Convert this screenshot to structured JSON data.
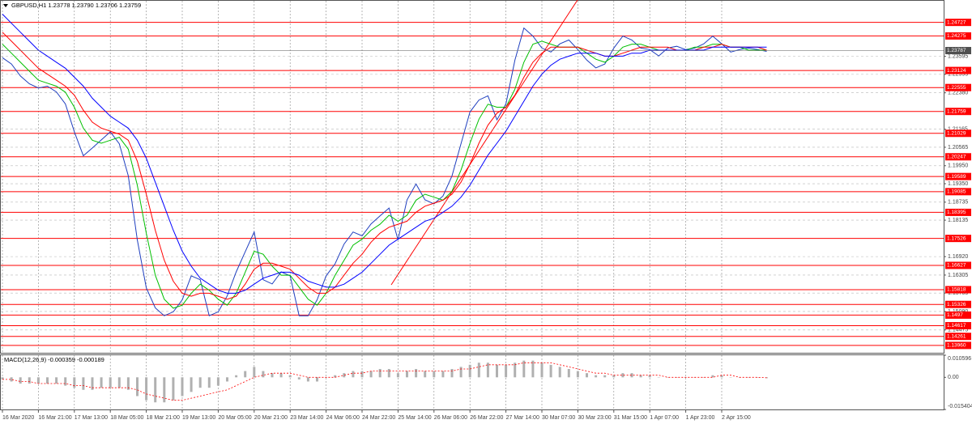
{
  "chart_data": [
    {
      "type": "line",
      "title": "GBPUSD,H1  1.23778 1.23790 1.23706 1.23759",
      "categories": [
        "16 Mar 2020",
        null,
        null,
        null,
        "16 Mar 21:00",
        null,
        null,
        null,
        "17 Mar 13:00",
        null,
        null,
        null,
        "18 Mar 05:00",
        null,
        null,
        null,
        "18 Mar 21:00",
        null,
        null,
        null,
        "19 Mar 13:00",
        null,
        null,
        null,
        "20 Mar 05:00",
        null,
        null,
        null,
        "20 Mar 21:00",
        null,
        null,
        null,
        "23 Mar 14:00",
        null,
        null,
        null,
        "24 Mar 06:00",
        null,
        null,
        null,
        "24 Mar 22:00",
        null,
        null,
        null,
        "25 Mar 14:00",
        null,
        null,
        null,
        "26 Mar 06:00",
        null,
        null,
        null,
        "26 Mar 22:00",
        null,
        null,
        null,
        "27 Mar 14:00",
        null,
        null,
        null,
        "30 Mar 07:00",
        null,
        null,
        null,
        "30 Mar 23:00",
        null,
        null,
        null,
        "31 Mar 15:00",
        null,
        null,
        null,
        "1 Apr 07:00",
        null,
        null,
        null,
        "1 Apr 23:00",
        null,
        null,
        null,
        "2 Apr 15:00",
        null,
        null,
        null,
        null,
        null
      ],
      "series": [
        {
          "color": "#1f3fbf",
          "width": 1,
          "values": [
            1.2355,
            1.2334,
            1.2294,
            1.2268,
            1.2254,
            1.226,
            1.2241,
            1.2201,
            1.2108,
            1.2028,
            1.2054,
            1.2081,
            1.2108,
            1.2068,
            1.1961,
            1.1748,
            1.1588,
            1.1521,
            1.1495,
            1.1508,
            1.1548,
            1.1628,
            1.1615,
            1.1495,
            1.1508,
            1.1561,
            1.1641,
            1.1708,
            1.1774,
            1.1615,
            1.1601,
            1.1641,
            1.1628,
            1.1495,
            1.1495,
            1.1548,
            1.1628,
            1.1668,
            1.1734,
            1.1774,
            1.1761,
            1.1801,
            1.1828,
            1.1854,
            1.1748,
            1.1881,
            1.1934,
            1.1881,
            1.1868,
            1.1894,
            1.1961,
            1.2068,
            1.2174,
            1.2214,
            1.2228,
            1.2148,
            1.2201,
            1.2347,
            1.2454,
            1.2427,
            1.2387,
            1.2374,
            1.2401,
            1.2414,
            1.2382,
            1.2347,
            1.2321,
            1.2334,
            1.2387,
            1.2427,
            1.2414,
            1.2387,
            1.2382,
            1.2361,
            1.2387,
            1.2393,
            1.2382,
            1.2387,
            1.2401,
            1.2427,
            1.2401,
            1.2374,
            1.2382,
            1.2387,
            1.2382,
            1.2376
          ]
        },
        {
          "color": "#00c000",
          "width": 1,
          "values": [
            1.24,
            1.237,
            1.234,
            1.231,
            1.228,
            1.227,
            1.226,
            1.224,
            1.219,
            1.212,
            1.208,
            1.207,
            1.208,
            1.209,
            1.205,
            1.193,
            1.177,
            1.163,
            1.155,
            1.152,
            1.153,
            1.157,
            1.16,
            1.158,
            1.155,
            1.153,
            1.157,
            1.164,
            1.171,
            1.17,
            1.166,
            1.163,
            1.163,
            1.159,
            1.155,
            1.153,
            1.157,
            1.163,
            1.168,
            1.173,
            1.175,
            1.178,
            1.18,
            1.183,
            1.181,
            1.183,
            1.188,
            1.19,
            1.189,
            1.188,
            1.191,
            1.198,
            1.207,
            1.215,
            1.22,
            1.219,
            1.219,
            1.225,
            1.234,
            1.24,
            1.241,
            1.24,
            1.239,
            1.239,
            1.239,
            1.237,
            1.235,
            1.234,
            1.236,
            1.239,
            1.24,
            1.24,
            1.239,
            1.238,
            1.238,
            1.238,
            1.238,
            1.239,
            1.239,
            1.24,
            1.24,
            1.239,
            1.239,
            1.238,
            1.238,
            1.238
          ]
        },
        {
          "color": "#ff0000",
          "width": 1,
          "values": [
            1.244,
            1.241,
            1.238,
            1.235,
            1.232,
            1.23,
            1.228,
            1.226,
            1.223,
            1.218,
            1.214,
            1.212,
            1.211,
            1.21,
            1.208,
            1.201,
            1.19,
            1.178,
            1.168,
            1.161,
            1.157,
            1.156,
            1.157,
            1.157,
            1.156,
            1.155,
            1.156,
            1.16,
            1.165,
            1.167,
            1.167,
            1.166,
            1.165,
            1.162,
            1.159,
            1.157,
            1.157,
            1.159,
            1.163,
            1.167,
            1.17,
            1.174,
            1.177,
            1.179,
            1.18,
            1.181,
            1.184,
            1.186,
            1.187,
            1.188,
            1.19,
            1.194,
            1.2,
            1.207,
            1.213,
            1.217,
            1.219,
            1.223,
            1.229,
            1.234,
            1.237,
            1.239,
            1.239,
            1.239,
            1.239,
            1.238,
            1.237,
            1.236,
            1.236,
            1.237,
            1.238,
            1.239,
            1.239,
            1.239,
            1.239,
            1.238,
            1.238,
            1.238,
            1.239,
            1.239,
            1.24,
            1.239,
            1.239,
            1.239,
            1.239,
            1.238
          ]
        },
        {
          "color": "#0000ff",
          "width": 1,
          "values": [
            1.25,
            1.247,
            1.244,
            1.241,
            1.238,
            1.236,
            1.234,
            1.232,
            1.229,
            1.226,
            1.222,
            1.219,
            1.216,
            1.214,
            1.212,
            1.208,
            1.202,
            1.194,
            1.186,
            1.178,
            1.171,
            1.166,
            1.162,
            1.16,
            1.158,
            1.157,
            1.157,
            1.158,
            1.16,
            1.162,
            1.163,
            1.164,
            1.164,
            1.163,
            1.161,
            1.16,
            1.159,
            1.159,
            1.16,
            1.162,
            1.164,
            1.167,
            1.17,
            1.173,
            1.175,
            1.177,
            1.179,
            1.181,
            1.182,
            1.184,
            1.186,
            1.189,
            1.193,
            1.198,
            1.203,
            1.207,
            1.211,
            1.216,
            1.221,
            1.226,
            1.23,
            1.233,
            1.235,
            1.236,
            1.237,
            1.237,
            1.237,
            1.236,
            1.236,
            1.236,
            1.237,
            1.237,
            1.238,
            1.238,
            1.238,
            1.238,
            1.238,
            1.238,
            1.238,
            1.239,
            1.239,
            1.239,
            1.239,
            1.239,
            1.239,
            1.239
          ]
        }
      ],
      "ylim": [
        1.13687,
        1.25473
      ],
      "yticks": [
        {
          "value": 1.23595,
          "label": "1.23595"
        },
        {
          "value": 1.22995,
          "label": "1.22995"
        },
        {
          "value": 1.2238,
          "label": "1.22380"
        },
        {
          "value": 1.21165,
          "label": "1.21165"
        },
        {
          "value": 1.20565,
          "label": "1.20565"
        },
        {
          "value": 1.1995,
          "label": "1.19950"
        },
        {
          "value": 1.1935,
          "label": "1.19350"
        },
        {
          "value": 1.18735,
          "label": "1.18735"
        },
        {
          "value": 1.18135,
          "label": "1.18135"
        },
        {
          "value": 1.1692,
          "label": "1.16920"
        },
        {
          "value": 1.16305,
          "label": "1.16305"
        },
        {
          "value": 1.15705,
          "label": "1.15705"
        },
        {
          "value": 1.1509,
          "label": "1.15090"
        },
        {
          "value": 1.14475,
          "label": "1.14475"
        }
      ],
      "levels": [
        1.24727,
        1.24275,
        1.23124,
        1.22555,
        1.21759,
        1.21029,
        1.20247,
        1.19589,
        1.19085,
        1.18395,
        1.17526,
        1.16627,
        1.15818,
        1.15326,
        1.1497,
        1.14617,
        1.14261,
        {
          "value": 1.1396,
          "label": "1.13960"
        }
      ],
      "levels_color": "#ff0000",
      "current_price": 1.23787,
      "grid": true
    },
    {
      "type": "macd",
      "title": "MACD(12,26,9) -0.000359 -0.000189",
      "histogram": {
        "color": "#b0b0b0",
        "values": [
          -0.001,
          -0.002,
          -0.003,
          -0.003,
          -0.003,
          -0.003,
          -0.003,
          -0.004,
          -0.005,
          -0.006,
          -0.006,
          -0.005,
          -0.005,
          -0.005,
          -0.006,
          -0.009,
          -0.011,
          -0.012,
          -0.012,
          -0.011,
          -0.009,
          -0.007,
          -0.005,
          -0.005,
          -0.004,
          -0.002,
          0.001,
          0.003,
          0.005,
          0.003,
          0.002,
          0.002,
          0.001,
          -0.001,
          -0.002,
          -0.002,
          0,
          0.001,
          0.002,
          0.003,
          0.003,
          0.003,
          0.004,
          0.004,
          0.002,
          0.003,
          0.004,
          0.003,
          0.003,
          0.003,
          0.004,
          0.005,
          0.006,
          0.007,
          0.007,
          0.006,
          0.006,
          0.007,
          0.008,
          0.008,
          0.007,
          0.006,
          0.005,
          0.004,
          0.003,
          0.002,
          0.001,
          0.001,
          0.001,
          0.002,
          0.002,
          0.001,
          0.001,
          0,
          0,
          0,
          0,
          0,
          0,
          0.001,
          0.001,
          0,
          0,
          0,
          0,
          -0.0004
        ]
      },
      "signal": {
        "color": "#ff0000",
        "values": [
          -0.001,
          -0.001,
          -0.002,
          -0.002,
          -0.003,
          -0.003,
          -0.003,
          -0.003,
          -0.004,
          -0.004,
          -0.005,
          -0.005,
          -0.005,
          -0.005,
          -0.005,
          -0.006,
          -0.008,
          -0.009,
          -0.01,
          -0.011,
          -0.011,
          -0.01,
          -0.009,
          -0.008,
          -0.007,
          -0.006,
          -0.004,
          -0.002,
          0,
          0.001,
          0.002,
          0.002,
          0.002,
          0.001,
          0,
          0,
          0,
          0,
          0.001,
          0.002,
          0.002,
          0.003,
          0.003,
          0.003,
          0.003,
          0.003,
          0.003,
          0.003,
          0.003,
          0.003,
          0.003,
          0.004,
          0.004,
          0.005,
          0.006,
          0.006,
          0.006,
          0.006,
          0.007,
          0.007,
          0.007,
          0.007,
          0.006,
          0.005,
          0.004,
          0.003,
          0.002,
          0.002,
          0.001,
          0.001,
          0.001,
          0.001,
          0.001,
          0.001,
          0,
          0,
          0,
          0,
          0,
          0,
          0.001,
          0.001,
          0,
          0,
          0,
          -0.0002
        ]
      },
      "ylim": [
        -0.015404,
        0.010596
      ],
      "yticks": [
        0.010596,
        {
          "value": 0,
          "label": "0.00"
        },
        -0.015404
      ]
    }
  ]
}
